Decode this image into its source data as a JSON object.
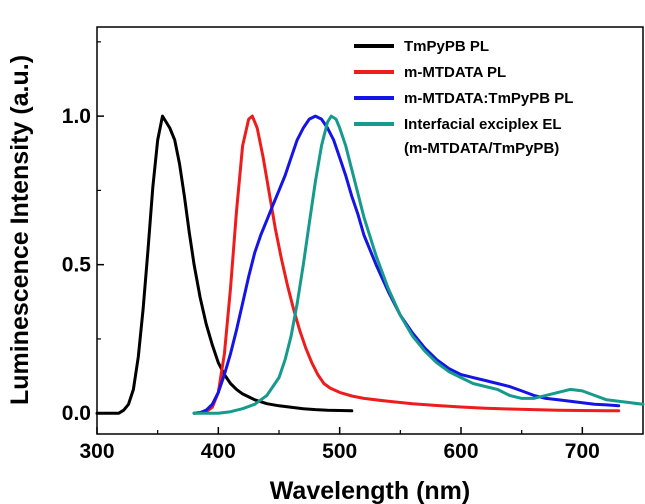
{
  "chart_data": {
    "type": "line",
    "xlabel": "Wavelength (nm)",
    "ylabel": "Luminescence  Intensity (a.u.)",
    "xlim": [
      300,
      750
    ],
    "ylim": [
      -0.07,
      1.3
    ],
    "x_ticks": [
      300,
      400,
      500,
      600,
      700
    ],
    "y_ticks": [
      0.0,
      0.5,
      1.0
    ],
    "x_tick_labels": [
      "300",
      "400",
      "500",
      "600",
      "700"
    ],
    "y_tick_labels": [
      "0.0",
      "0.5",
      "1.0"
    ],
    "grid": false,
    "legend_position": "top-right",
    "series": [
      {
        "name": "TmPyPB PL",
        "color": "#000000",
        "points": [
          [
            300,
            0
          ],
          [
            318,
            0
          ],
          [
            322,
            0.01
          ],
          [
            326,
            0.03
          ],
          [
            330,
            0.08
          ],
          [
            334,
            0.19
          ],
          [
            338,
            0.35
          ],
          [
            342,
            0.55
          ],
          [
            346,
            0.76
          ],
          [
            350,
            0.92
          ],
          [
            354,
            1.0
          ],
          [
            357,
            0.98
          ],
          [
            360,
            0.96
          ],
          [
            364,
            0.92
          ],
          [
            368,
            0.84
          ],
          [
            372,
            0.73
          ],
          [
            376,
            0.61
          ],
          [
            380,
            0.5
          ],
          [
            385,
            0.39
          ],
          [
            390,
            0.3
          ],
          [
            395,
            0.23
          ],
          [
            400,
            0.17
          ],
          [
            405,
            0.13
          ],
          [
            410,
            0.1
          ],
          [
            415,
            0.08
          ],
          [
            420,
            0.065
          ],
          [
            430,
            0.045
          ],
          [
            440,
            0.032
          ],
          [
            450,
            0.025
          ],
          [
            460,
            0.02
          ],
          [
            470,
            0.015
          ],
          [
            480,
            0.012
          ],
          [
            490,
            0.01
          ],
          [
            500,
            0.009
          ],
          [
            510,
            0.008
          ]
        ]
      },
      {
        "name": "m-MTDATA PL",
        "color": "#ee1c1c",
        "points": [
          [
            380,
            0
          ],
          [
            390,
            0.005
          ],
          [
            395,
            0.02
          ],
          [
            400,
            0.07
          ],
          [
            405,
            0.2
          ],
          [
            410,
            0.42
          ],
          [
            415,
            0.68
          ],
          [
            420,
            0.9
          ],
          [
            425,
            0.99
          ],
          [
            428,
            1.0
          ],
          [
            432,
            0.96
          ],
          [
            437,
            0.86
          ],
          [
            442,
            0.74
          ],
          [
            447,
            0.62
          ],
          [
            452,
            0.52
          ],
          [
            457,
            0.43
          ],
          [
            462,
            0.35
          ],
          [
            467,
            0.28
          ],
          [
            472,
            0.22
          ],
          [
            477,
            0.17
          ],
          [
            482,
            0.13
          ],
          [
            487,
            0.1
          ],
          [
            492,
            0.085
          ],
          [
            500,
            0.07
          ],
          [
            510,
            0.058
          ],
          [
            520,
            0.05
          ],
          [
            540,
            0.04
          ],
          [
            560,
            0.032
          ],
          [
            580,
            0.026
          ],
          [
            600,
            0.021
          ],
          [
            620,
            0.017
          ],
          [
            640,
            0.014
          ],
          [
            660,
            0.012
          ],
          [
            680,
            0.01
          ],
          [
            700,
            0.009
          ],
          [
            720,
            0.008
          ],
          [
            730,
            0.008
          ]
        ]
      },
      {
        "name": "m-MTDATA:TmPyPB PL",
        "color": "#1414e6",
        "points": [
          [
            380,
            0
          ],
          [
            385,
            0.002
          ],
          [
            390,
            0.01
          ],
          [
            395,
            0.03
          ],
          [
            400,
            0.07
          ],
          [
            405,
            0.13
          ],
          [
            410,
            0.2
          ],
          [
            415,
            0.28
          ],
          [
            420,
            0.37
          ],
          [
            425,
            0.46
          ],
          [
            430,
            0.54
          ],
          [
            435,
            0.6
          ],
          [
            440,
            0.65
          ],
          [
            445,
            0.7
          ],
          [
            450,
            0.75
          ],
          [
            455,
            0.8
          ],
          [
            460,
            0.86
          ],
          [
            465,
            0.92
          ],
          [
            470,
            0.96
          ],
          [
            475,
            0.99
          ],
          [
            480,
            1.0
          ],
          [
            485,
            0.99
          ],
          [
            490,
            0.96
          ],
          [
            495,
            0.92
          ],
          [
            500,
            0.86
          ],
          [
            505,
            0.8
          ],
          [
            510,
            0.73
          ],
          [
            515,
            0.67
          ],
          [
            520,
            0.6
          ],
          [
            530,
            0.5
          ],
          [
            540,
            0.41
          ],
          [
            550,
            0.33
          ],
          [
            560,
            0.27
          ],
          [
            570,
            0.22
          ],
          [
            580,
            0.18
          ],
          [
            590,
            0.15
          ],
          [
            600,
            0.13
          ],
          [
            610,
            0.12
          ],
          [
            620,
            0.11
          ],
          [
            630,
            0.1
          ],
          [
            640,
            0.09
          ],
          [
            650,
            0.075
          ],
          [
            660,
            0.06
          ],
          [
            670,
            0.05
          ],
          [
            680,
            0.045
          ],
          [
            690,
            0.04
          ],
          [
            700,
            0.035
          ],
          [
            710,
            0.03
          ],
          [
            720,
            0.028
          ],
          [
            730,
            0.025
          ]
        ]
      },
      {
        "name": "Interfacial exciplex EL",
        "name_line2": "(m-MTDATA/TmPyPB)",
        "color": "#169a8c",
        "points": [
          [
            380,
            0
          ],
          [
            400,
            0
          ],
          [
            410,
            0.005
          ],
          [
            420,
            0.015
          ],
          [
            430,
            0.03
          ],
          [
            440,
            0.06
          ],
          [
            450,
            0.12
          ],
          [
            455,
            0.18
          ],
          [
            460,
            0.26
          ],
          [
            465,
            0.37
          ],
          [
            470,
            0.5
          ],
          [
            475,
            0.64
          ],
          [
            480,
            0.78
          ],
          [
            485,
            0.9
          ],
          [
            490,
            0.98
          ],
          [
            493,
            1.0
          ],
          [
            497,
            0.99
          ],
          [
            500,
            0.96
          ],
          [
            505,
            0.9
          ],
          [
            510,
            0.82
          ],
          [
            515,
            0.74
          ],
          [
            520,
            0.66
          ],
          [
            530,
            0.53
          ],
          [
            540,
            0.42
          ],
          [
            550,
            0.33
          ],
          [
            560,
            0.26
          ],
          [
            570,
            0.21
          ],
          [
            580,
            0.17
          ],
          [
            590,
            0.14
          ],
          [
            600,
            0.12
          ],
          [
            610,
            0.1
          ],
          [
            620,
            0.09
          ],
          [
            630,
            0.08
          ],
          [
            640,
            0.06
          ],
          [
            650,
            0.05
          ],
          [
            660,
            0.05
          ],
          [
            670,
            0.06
          ],
          [
            680,
            0.07
          ],
          [
            690,
            0.08
          ],
          [
            700,
            0.075
          ],
          [
            710,
            0.06
          ],
          [
            720,
            0.045
          ],
          [
            730,
            0.04
          ],
          [
            740,
            0.035
          ],
          [
            750,
            0.03
          ]
        ]
      }
    ]
  }
}
